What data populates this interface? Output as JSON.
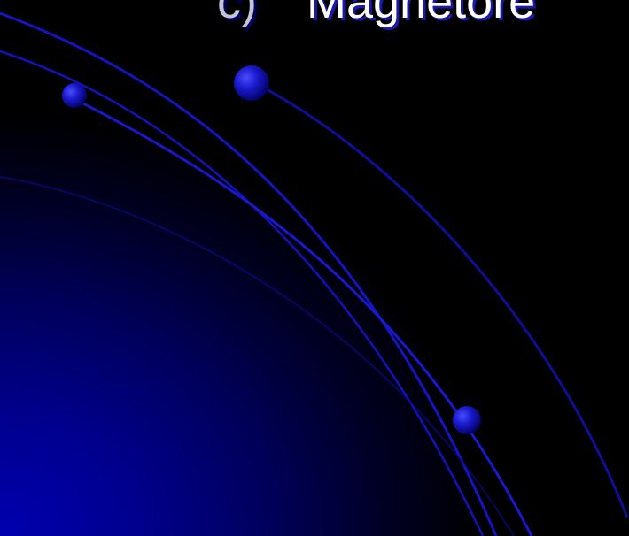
{
  "slide": {
    "title_number": "c)",
    "title_text": "Magnetore"
  },
  "colors": {
    "background": "#000000",
    "arc": "#1616c8",
    "gradient": "#0000b0",
    "title_text": "#ffffff",
    "title_number": "#c4c4d4"
  }
}
